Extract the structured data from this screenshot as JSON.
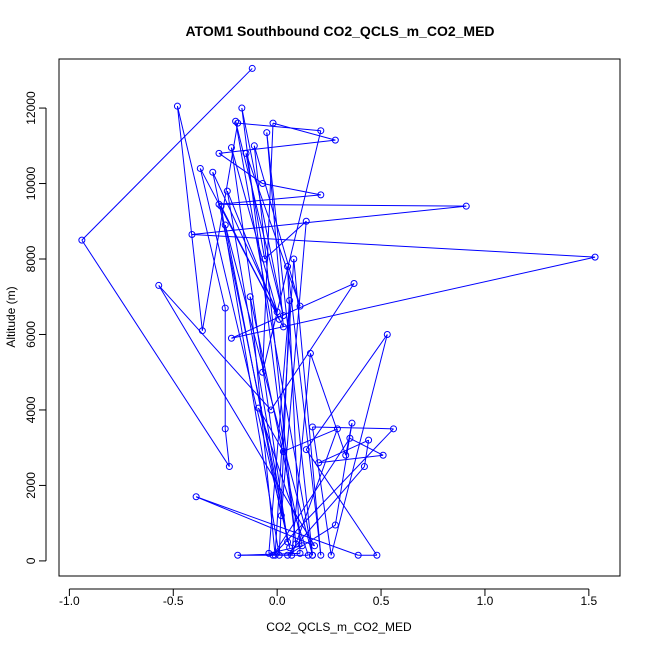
{
  "chart_data": {
    "type": "line",
    "title": "ATOM1 Southbound CO2_QCLS_m_CO2_MED",
    "xlabel": "CO2_QCLS_m_CO2_MED",
    "ylabel": "Altitude (m)",
    "xlim": [
      -1.05,
      1.65
    ],
    "ylim": [
      -400,
      13300
    ],
    "x_ticks": [
      -1.0,
      -0.5,
      0.0,
      0.5,
      1.0,
      1.5
    ],
    "x_tick_labels": [
      "-1.0",
      "-0.5",
      "0.0",
      "0.5",
      "1.0",
      "1.5"
    ],
    "y_ticks": [
      0,
      2000,
      4000,
      6000,
      8000,
      10000,
      12000
    ],
    "y_tick_labels": [
      "0",
      "2000",
      "4000",
      "6000",
      "8000",
      "10000",
      "12000"
    ],
    "grid": false,
    "line_color": "#0000ff",
    "marker": "open-circle",
    "series": [
      {
        "points": [
          [
            -0.12,
            13050
          ],
          [
            -0.94,
            8500
          ],
          [
            -0.23,
            2500
          ],
          [
            -0.25,
            3500
          ],
          [
            -0.25,
            6700
          ],
          [
            -0.48,
            12050
          ],
          [
            -0.36,
            6100
          ],
          [
            -0.19,
            11600
          ],
          [
            0.21,
            11400
          ],
          [
            -0.07,
            5000
          ],
          [
            -0.02,
            11600
          ],
          [
            0.28,
            11150
          ],
          [
            -0.28,
            10800
          ],
          [
            -0.07,
            10000
          ],
          [
            0.21,
            9700
          ],
          [
            -0.28,
            9450
          ],
          [
            0.91,
            9400
          ],
          [
            -0.41,
            8650
          ],
          [
            1.53,
            8050
          ],
          [
            -0.22,
            5900
          ],
          [
            0.37,
            7350
          ],
          [
            -0.03,
            4000
          ],
          [
            -0.57,
            7300
          ],
          [
            0.18,
            400
          ],
          [
            -0.39,
            1700
          ],
          [
            0.39,
            150
          ],
          [
            0.48,
            150
          ],
          [
            0.14,
            2950
          ],
          [
            0.53,
            6000
          ],
          [
            0.26,
            150
          ],
          [
            0.17,
            3550
          ],
          [
            0.56,
            3500
          ],
          [
            -0.02,
            150
          ],
          [
            0.35,
            3250
          ],
          [
            0.51,
            2800
          ],
          [
            0.2,
            2600
          ],
          [
            0.44,
            3200
          ],
          [
            0.42,
            2500
          ],
          [
            0.05,
            150
          ],
          [
            0.28,
            950
          ],
          [
            0.36,
            3650
          ],
          [
            0.33,
            2800
          ],
          [
            0.16,
            5500
          ],
          [
            0.07,
            150
          ],
          [
            0.29,
            3500
          ],
          [
            0.03,
            2900
          ],
          [
            -0.09,
            4050
          ],
          [
            0.15,
            150
          ],
          [
            -0.19,
            150
          ],
          [
            0.11,
            200
          ],
          [
            0.05,
            7800
          ],
          [
            0.21,
            150
          ],
          [
            0.08,
            8000
          ],
          [
            -0.01,
            150
          ],
          [
            -0.13,
            7000
          ],
          [
            0.12,
            400
          ],
          [
            -0.04,
            200
          ],
          [
            0.06,
            6900
          ],
          [
            0.01,
            150
          ],
          [
            -0.27,
            9400
          ],
          [
            0.01,
            6400
          ],
          [
            -0.24,
            9800
          ],
          [
            0.05,
            500
          ],
          [
            -0.22,
            10950
          ],
          [
            0.0,
            6600
          ],
          [
            -0.31,
            10300
          ],
          [
            0.06,
            350
          ],
          [
            -0.37,
            10400
          ],
          [
            0.03,
            6200
          ],
          [
            -0.05,
            11350
          ],
          [
            0.17,
            150
          ],
          [
            -0.2,
            11650
          ],
          [
            0.03,
            6500
          ],
          [
            -0.17,
            12000
          ],
          [
            0.09,
            450
          ],
          [
            -0.11,
            11000
          ],
          [
            0.11,
            6750
          ],
          [
            -0.15,
            10800
          ],
          [
            -0.06,
            8000
          ],
          [
            0.14,
            9000
          ],
          [
            0.02,
            1200
          ],
          [
            -0.25,
            8900
          ],
          [
            0.17,
            150
          ]
        ]
      }
    ]
  }
}
